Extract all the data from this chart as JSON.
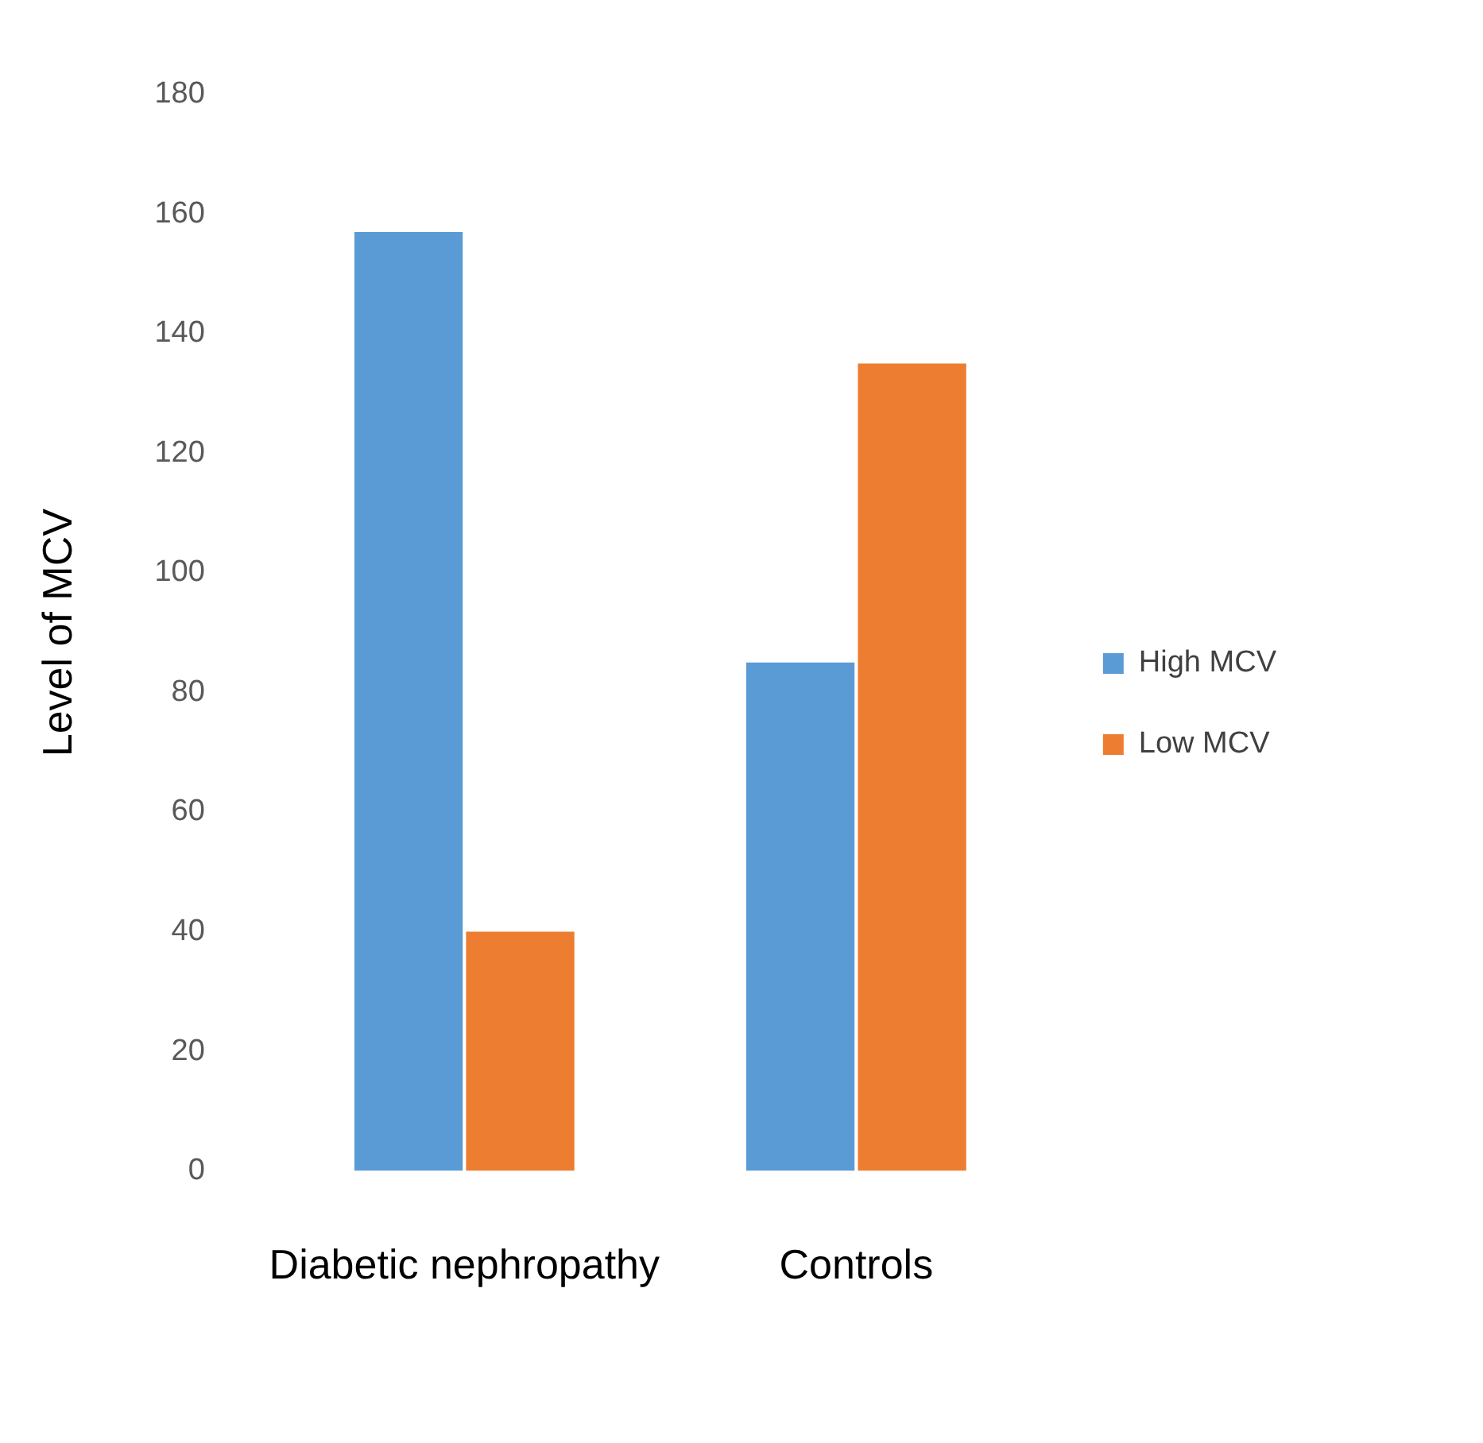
{
  "chart_data": {
    "type": "bar",
    "ylabel": "Level of MCV",
    "categories": [
      "Diabetic nephropathy",
      "Controls"
    ],
    "series": [
      {
        "name": "High MCV",
        "color": "#5b9bd5",
        "values": [
          157,
          85
        ]
      },
      {
        "name": "Low MCV",
        "color": "#ed7d31",
        "values": [
          40,
          135
        ]
      }
    ],
    "ylim": [
      0,
      180
    ],
    "yticks": [
      0,
      20,
      40,
      60,
      80,
      100,
      120,
      140,
      160,
      180
    ],
    "grid": false,
    "legend": "right"
  }
}
